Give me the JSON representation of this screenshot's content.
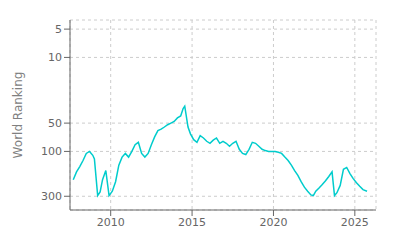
{
  "chart_data": {
    "type": "line",
    "ylabel": "World Ranking",
    "color": "#00CCCC",
    "log": "y",
    "grid": true,
    "xlim": [
      2007.5,
      2026.3
    ],
    "xticks": [
      2010,
      2015,
      2020,
      2025
    ],
    "ylim": [
      420,
      4
    ],
    "yticks": [
      5,
      10,
      50,
      100,
      300
    ],
    "x": [
      2007.7,
      2007.9,
      2008.1,
      2008.3,
      2008.5,
      2008.7,
      2008.9,
      2009.0,
      2009.2,
      2009.35,
      2009.5,
      2009.7,
      2009.9,
      2010.1,
      2010.3,
      2010.5,
      2010.7,
      2010.9,
      2011.1,
      2011.3,
      2011.5,
      2011.7,
      2011.9,
      2012.1,
      2012.3,
      2012.5,
      2012.7,
      2012.9,
      2013.1,
      2013.3,
      2013.5,
      2013.7,
      2013.9,
      2014.1,
      2014.3,
      2014.45,
      2014.55,
      2014.75,
      2014.9,
      2015.1,
      2015.3,
      2015.5,
      2015.7,
      2015.9,
      2016.1,
      2016.3,
      2016.5,
      2016.7,
      2016.9,
      2017.1,
      2017.3,
      2017.5,
      2017.7,
      2017.9,
      2018.1,
      2018.3,
      2018.5,
      2018.7,
      2018.9,
      2019.1,
      2019.3,
      2019.5,
      2019.7,
      2019.9,
      2020.1,
      2020.3,
      2020.5,
      2020.7,
      2020.9,
      2021.1,
      2021.3,
      2021.5,
      2021.7,
      2021.9,
      2022.1,
      2022.3,
      2022.45,
      2022.6,
      2022.8,
      2023.0,
      2023.2,
      2023.4,
      2023.6,
      2023.75,
      2023.9,
      2024.1,
      2024.3,
      2024.5,
      2024.7,
      2024.9,
      2025.1,
      2025.3,
      2025.5,
      2025.75
    ],
    "values": [
      200,
      165,
      145,
      125,
      105,
      100,
      110,
      120,
      295,
      270,
      200,
      160,
      295,
      265,
      210,
      140,
      115,
      105,
      115,
      100,
      85,
      80,
      105,
      115,
      105,
      85,
      70,
      60,
      58,
      55,
      52,
      50,
      48,
      44,
      42,
      35,
      33,
      55,
      65,
      75,
      80,
      68,
      72,
      78,
      82,
      76,
      72,
      82,
      78,
      82,
      88,
      82,
      78,
      95,
      105,
      108,
      95,
      80,
      82,
      88,
      95,
      98,
      100,
      100,
      100,
      102,
      105,
      115,
      125,
      140,
      160,
      180,
      210,
      240,
      265,
      290,
      295,
      265,
      245,
      225,
      205,
      185,
      165,
      295,
      275,
      230,
      155,
      148,
      172,
      195,
      215,
      235,
      255,
      265
    ]
  }
}
